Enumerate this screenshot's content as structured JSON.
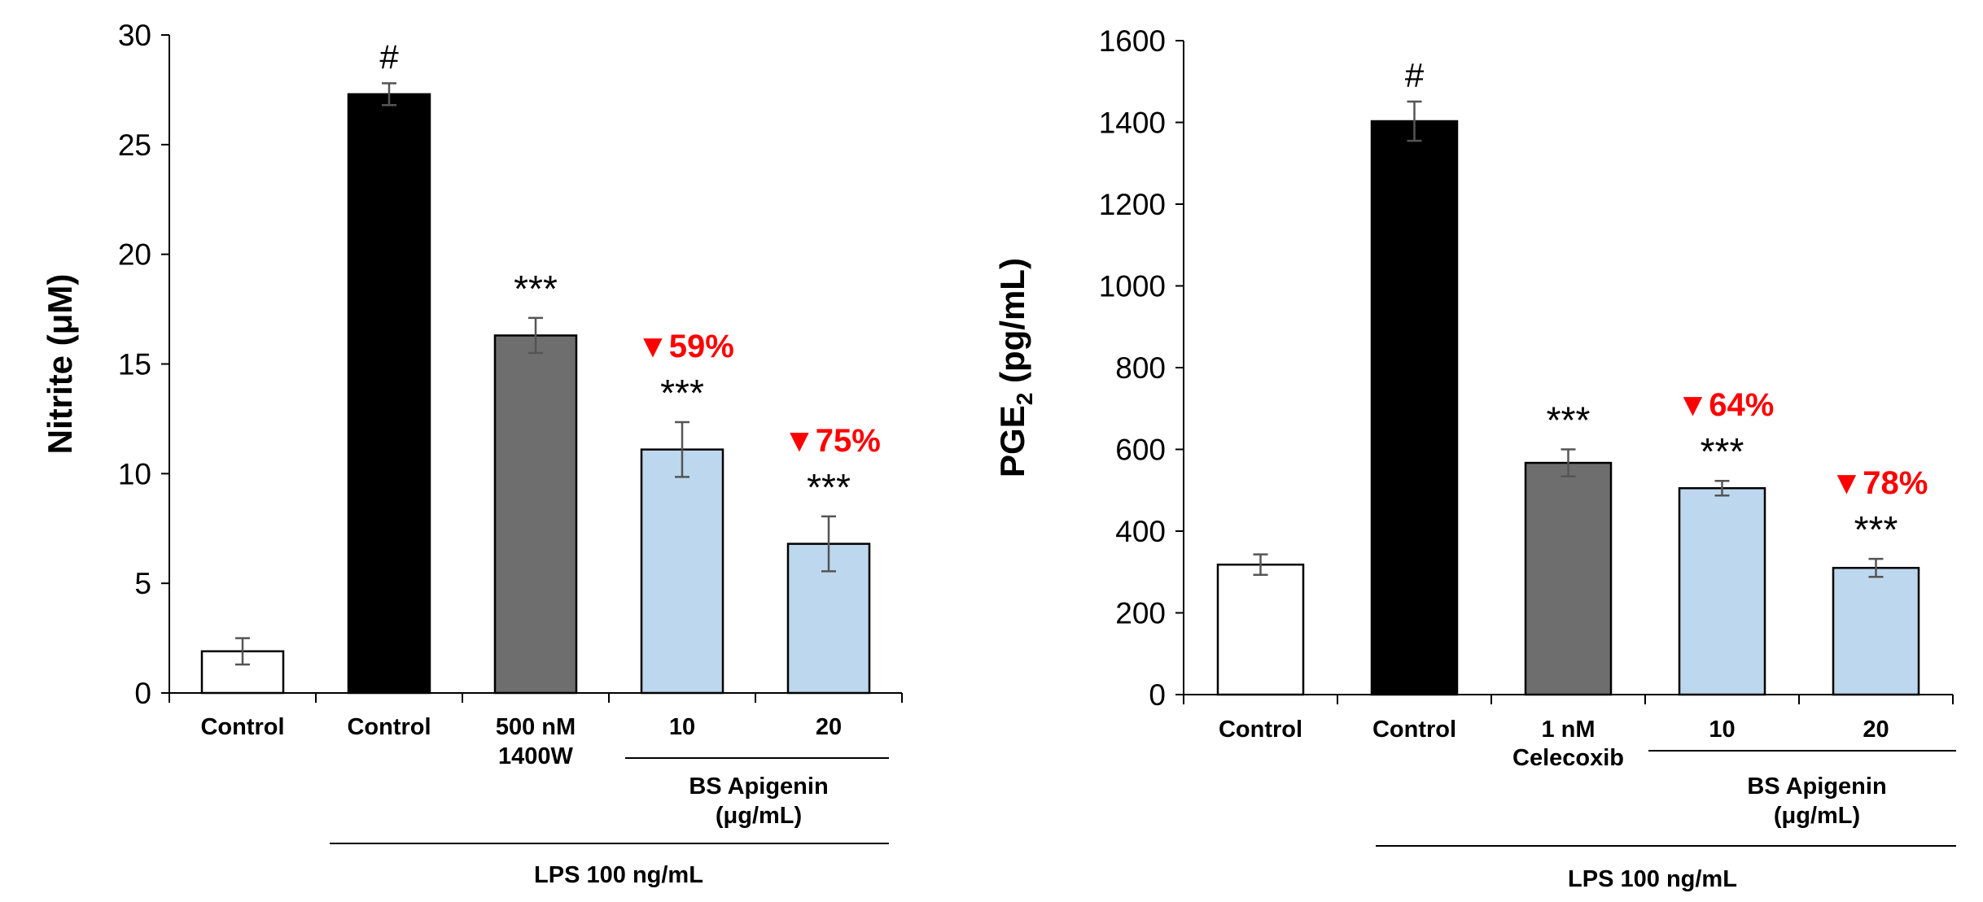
{
  "colors": {
    "control": "#ffffff",
    "lps": "#000000",
    "positive": "#6e6e6e",
    "apigenin": "#bdd7ee",
    "annotation": "#ff0000",
    "axis": "#000000",
    "errorbar": "#555555"
  },
  "chart_data": [
    {
      "type": "bar",
      "ylabel": "Nitrite (μM)",
      "ylim": [
        0,
        30
      ],
      "yticks": [
        0,
        5,
        10,
        15,
        20,
        25,
        30
      ],
      "grid": false,
      "categories": [
        "Control",
        "Control",
        "500 nM 1400W",
        "10",
        "20"
      ],
      "category_lines": [
        [
          "Control"
        ],
        [
          "Control"
        ],
        [
          "500 nM",
          "1400W"
        ],
        [
          "10"
        ],
        [
          "20"
        ]
      ],
      "values": [
        1.9,
        27.3,
        16.3,
        11.1,
        6.8
      ],
      "errors": [
        0.6,
        0.5,
        0.8,
        1.25,
        1.25
      ],
      "bar_groups": [
        "control",
        "lps",
        "positive",
        "apigenin",
        "apigenin"
      ],
      "significance": [
        "",
        "#",
        "***",
        "***",
        "***"
      ],
      "reduction_labels": [
        "",
        "",
        "",
        "▼59%",
        "▼75%"
      ],
      "group_label": [
        "BS Apigenin",
        "(μg/mL)"
      ],
      "lps_label": "LPS 100 ng/mL"
    },
    {
      "type": "bar",
      "ylabel": "PGE2 (pg/mL)",
      "ylabel_parts": [
        "PGE",
        "2",
        " (pg/mL)"
      ],
      "ylim": [
        0,
        1600
      ],
      "yticks": [
        0,
        200,
        400,
        600,
        800,
        1000,
        1200,
        1400,
        1600
      ],
      "grid": false,
      "categories": [
        "Control",
        "Control",
        "1 nM Celecoxib",
        "10",
        "20"
      ],
      "category_lines": [
        [
          "Control"
        ],
        [
          "Control"
        ],
        [
          "1 nM",
          "Celecoxib"
        ],
        [
          "10"
        ],
        [
          "20"
        ]
      ],
      "values": [
        318,
        1403,
        567,
        505,
        310
      ],
      "errors": [
        25,
        48,
        33,
        18,
        22
      ],
      "bar_groups": [
        "control",
        "lps",
        "positive",
        "apigenin",
        "apigenin"
      ],
      "significance": [
        "",
        "#",
        "***",
        "***",
        "***"
      ],
      "reduction_labels": [
        "",
        "",
        "",
        "▼64%",
        "▼78%"
      ],
      "group_label": [
        "BS Apigenin",
        "(μg/mL)"
      ],
      "lps_label": "LPS 100 ng/mL"
    }
  ]
}
